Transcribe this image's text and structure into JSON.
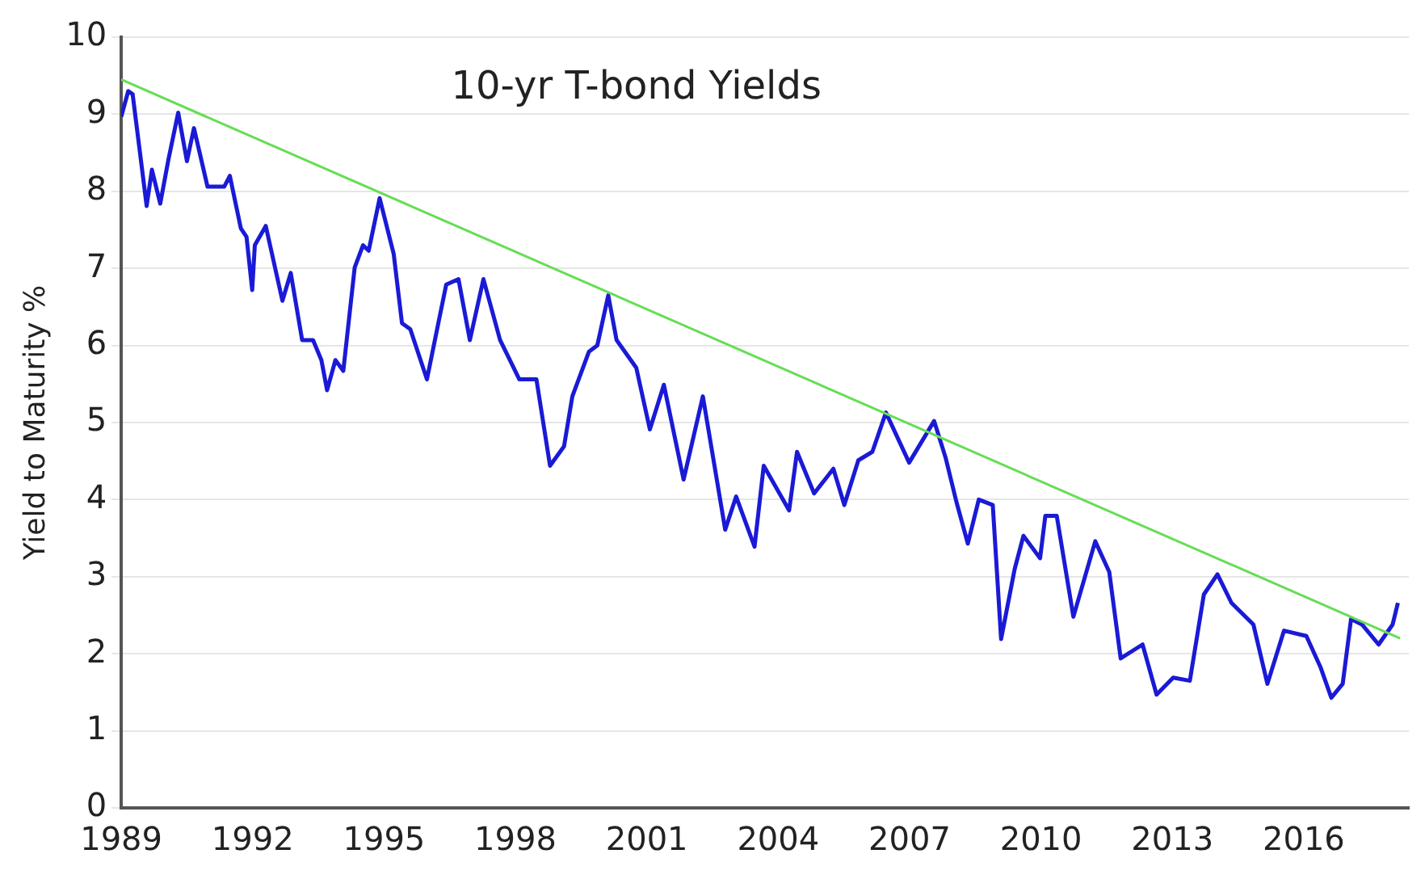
{
  "chart_data": {
    "type": "line",
    "title": "10-yr T-bond Yields",
    "ylabel": "Yield to Maturity %",
    "xlim": [
      1989,
      2018.4
    ],
    "xticks": [
      1989,
      1992,
      1995,
      1998,
      2001,
      2004,
      2007,
      2010,
      2013,
      2016
    ],
    "ylim": [
      0,
      10
    ],
    "yticks": [
      0,
      1,
      2,
      3,
      4,
      5,
      6,
      7,
      8,
      9,
      10
    ],
    "grid": "y",
    "legend": false,
    "marker": "none",
    "line_style": "solid",
    "series": [
      {
        "color": "#1a1ad6",
        "x": [
          1989.0,
          1989.16,
          1989.26,
          1989.58,
          1989.7,
          1989.89,
          1990.08,
          1990.3,
          1990.5,
          1990.66,
          1990.97,
          1991.35,
          1991.48,
          1991.73,
          1991.86,
          1991.99,
          1992.05,
          1992.3,
          1992.68,
          1992.87,
          1993.13,
          1993.38,
          1993.57,
          1993.7,
          1993.89,
          1994.07,
          1994.33,
          1994.52,
          1994.65,
          1994.9,
          1995.22,
          1995.41,
          1995.6,
          1995.98,
          1996.24,
          1996.42,
          1996.7,
          1996.96,
          1997.27,
          1997.65,
          1998.09,
          1998.48,
          1998.79,
          1999.11,
          1999.3,
          1999.68,
          1999.87,
          2000.12,
          2000.31,
          2000.76,
          2001.07,
          2001.39,
          2001.84,
          2002.28,
          2002.79,
          2003.04,
          2003.46,
          2003.67,
          2004.25,
          2004.43,
          2004.82,
          2005.26,
          2005.51,
          2005.83,
          2006.15,
          2006.46,
          2006.99,
          2007.56,
          2007.82,
          2008.07,
          2008.33,
          2008.58,
          2008.9,
          2009.09,
          2009.4,
          2009.6,
          2009.98,
          2010.1,
          2010.36,
          2010.74,
          2011.24,
          2011.56,
          2011.82,
          2012.32,
          2012.64,
          2013.02,
          2013.4,
          2013.72,
          2014.03,
          2014.35,
          2014.85,
          2015.17,
          2015.55,
          2016.06,
          2016.38,
          2016.63,
          2016.89,
          2017.08,
          2017.33,
          2017.71,
          2018.03,
          2018.15
        ],
        "values": [
          8.97,
          9.3,
          9.26,
          7.81,
          8.28,
          7.84,
          8.42,
          9.02,
          8.39,
          8.82,
          8.06,
          8.06,
          8.2,
          7.52,
          7.41,
          6.72,
          7.3,
          7.55,
          6.58,
          6.94,
          6.07,
          6.07,
          5.81,
          5.42,
          5.81,
          5.67,
          7.01,
          7.3,
          7.23,
          7.91,
          7.19,
          6.29,
          6.21,
          5.56,
          6.29,
          6.79,
          6.86,
          6.07,
          6.86,
          6.07,
          5.56,
          5.56,
          4.44,
          4.69,
          5.34,
          5.92,
          6.0,
          6.65,
          6.07,
          5.71,
          4.91,
          5.49,
          4.26,
          5.34,
          3.61,
          4.04,
          3.39,
          4.44,
          3.86,
          4.62,
          4.08,
          4.4,
          3.93,
          4.51,
          4.62,
          5.13,
          4.48,
          5.02,
          4.55,
          3.97,
          3.43,
          4.0,
          3.93,
          2.19,
          3.1,
          3.53,
          3.24,
          3.79,
          3.79,
          2.48,
          3.46,
          3.06,
          1.94,
          2.12,
          1.47,
          1.69,
          1.65,
          2.77,
          3.03,
          2.66,
          2.38,
          1.61,
          2.3,
          2.23,
          1.83,
          1.43,
          1.61,
          2.45,
          2.38,
          2.12,
          2.38,
          2.66
        ]
      },
      {
        "type": "line",
        "color": "#66dd55",
        "x": [
          1989,
          2018.2
        ],
        "values": [
          9.45,
          2.2
        ]
      }
    ]
  }
}
